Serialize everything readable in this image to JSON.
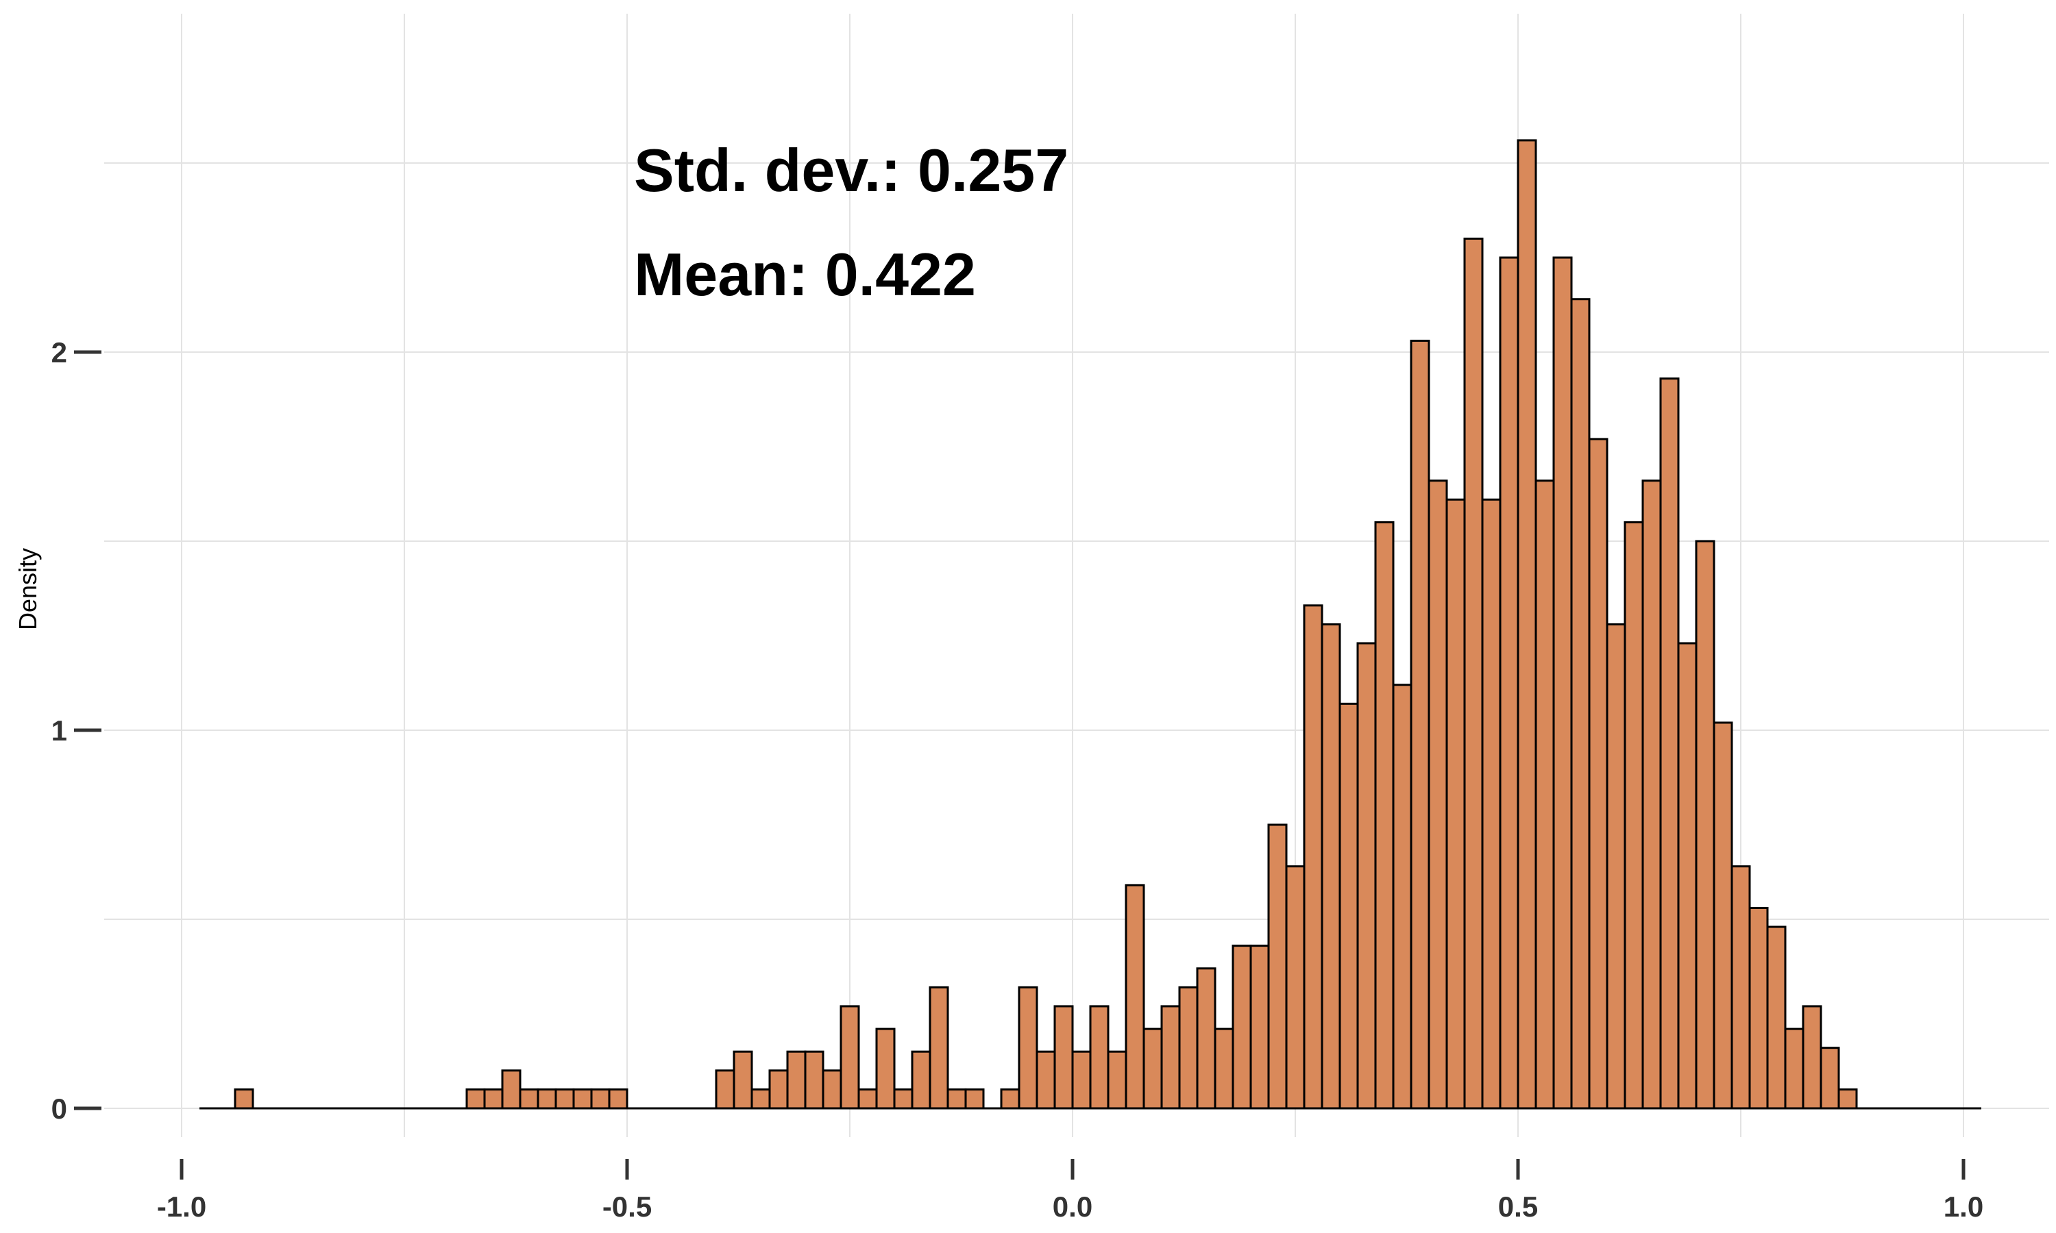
{
  "chart_data": {
    "type": "bar",
    "title": "",
    "xlabel": "",
    "ylabel": "Density",
    "xlim": [
      -1.0,
      1.0
    ],
    "ylim": [
      0,
      2.6
    ],
    "grid": true,
    "legend": "none",
    "x_ticks": [
      "-1.0",
      "-0.5",
      "0.0",
      "0.5",
      "1.0"
    ],
    "y_ticks": [
      "0",
      "1",
      "2"
    ],
    "bin_width": 0.02,
    "bin_start": -0.98,
    "values": [
      0,
      0,
      0.05,
      0,
      0,
      0,
      0,
      0,
      0,
      0,
      0,
      0,
      0,
      0,
      0,
      0.05,
      0.05,
      0.1,
      0.05,
      0.05,
      0.05,
      0.05,
      0.05,
      0.05,
      0,
      0,
      0,
      0,
      0,
      0.1,
      0.15,
      0.05,
      0.1,
      0.15,
      0.15,
      0.1,
      0.27,
      0.05,
      0.21,
      0.05,
      0.15,
      0.32,
      0.05,
      0.05,
      0,
      0.05,
      0.32,
      0.15,
      0.27,
      0.15,
      0.27,
      0.15,
      0.59,
      0.21,
      0.27,
      0.32,
      0.37,
      0.21,
      0.43,
      0.43,
      0.75,
      0.64,
      1.33,
      1.28,
      1.07,
      1.23,
      1.55,
      1.12,
      2.03,
      1.66,
      1.61,
      2.3,
      1.61,
      2.25,
      2.56,
      1.66,
      2.25,
      2.14,
      1.77,
      1.28,
      1.55,
      1.66,
      1.93,
      1.23,
      1.5,
      1.02,
      0.64,
      0.53,
      0.48,
      0.21,
      0.27,
      0.16,
      0.05,
      0,
      0,
      0,
      0,
      0,
      0,
      0
    ],
    "annotations": [
      "Std. dev.: 0.257",
      "Mean: 0.422"
    ],
    "colors": {
      "bar_fill": "#d9895a",
      "bar_stroke": "#000000",
      "grid": "#e3e3e3",
      "axis_text": "#333333"
    }
  }
}
